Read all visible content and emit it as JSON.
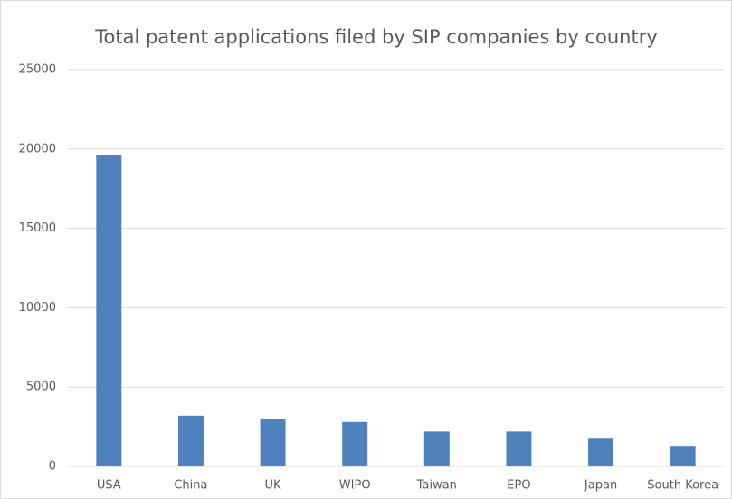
{
  "chart_data": {
    "type": "bar",
    "title": "Total patent applications filed by SIP companies by country",
    "categories": [
      "USA",
      "China",
      "UK",
      "WIPO",
      "Taiwan",
      "EPO",
      "Japan",
      "South Korea"
    ],
    "values": [
      19600,
      3200,
      3000,
      2800,
      2200,
      2200,
      1750,
      1300
    ],
    "color": "#4f81bd",
    "ylim": [
      0,
      25000
    ],
    "yticks": [
      0,
      5000,
      10000,
      15000,
      20000,
      25000
    ],
    "grid": true
  }
}
